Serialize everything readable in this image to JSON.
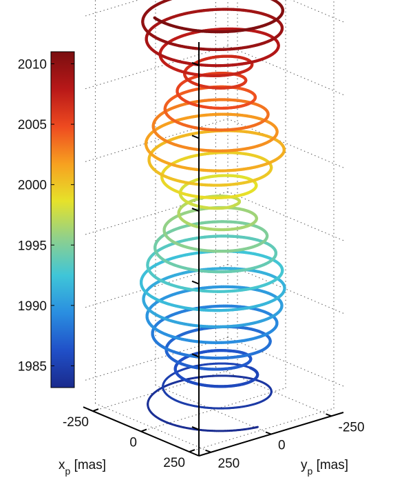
{
  "chart_data": {
    "type": "line",
    "subtype": "3d-helix",
    "title": "",
    "xlabel": "x",
    "xlabel_sub": "p",
    "xlabel_unit": " [mas]",
    "ylabel": "y",
    "ylabel_sub": "p",
    "ylabel_unit": " [mas]",
    "zlabel": "",
    "x_ticks": [
      "-250",
      "0",
      "250"
    ],
    "y_ticks": [
      "-250",
      "0",
      "250"
    ],
    "z_ticks": [
      "1985",
      "1990",
      "1995",
      "2000",
      "2005",
      "2010"
    ],
    "xlim": [
      -300,
      300
    ],
    "ylim": [
      -300,
      300
    ],
    "zlim": [
      1983.2,
      2011.6
    ],
    "grid": true,
    "colorbar": {
      "range": [
        1983.2,
        2011.0
      ],
      "tick_labels": [
        "2010",
        "2005",
        "2000",
        "1995",
        "1990",
        "1985"
      ],
      "colormap": [
        "#1a2a8c",
        "#2050c8",
        "#2a8ee0",
        "#3fc5d8",
        "#8fd08c",
        "#e6e22a",
        "#f7a020",
        "#ee4a20",
        "#b81818",
        "#7a0e10"
      ]
    },
    "series": [
      {
        "type": "polar-motion-helix",
        "t_start": 1983.3,
        "t_end": 2011.0,
        "chandler_period_years": 1.19,
        "annual_period_years": 1.0,
        "amplitude_mas": [
          [
            1983.3,
            230
          ],
          [
            1985.0,
            160
          ],
          [
            1986.5,
            110
          ],
          [
            1988.0,
            190
          ],
          [
            1990.0,
            220
          ],
          [
            1992.0,
            235
          ],
          [
            1994.0,
            200
          ],
          [
            1996.0,
            150
          ],
          [
            1997.5,
            80
          ],
          [
            1999.0,
            160
          ],
          [
            2001.0,
            230
          ],
          [
            2003.0,
            190
          ],
          [
            2005.0,
            120
          ],
          [
            2006.5,
            90
          ],
          [
            2008.0,
            210
          ],
          [
            2010.0,
            230
          ],
          [
            2011.0,
            220
          ]
        ]
      }
    ]
  }
}
